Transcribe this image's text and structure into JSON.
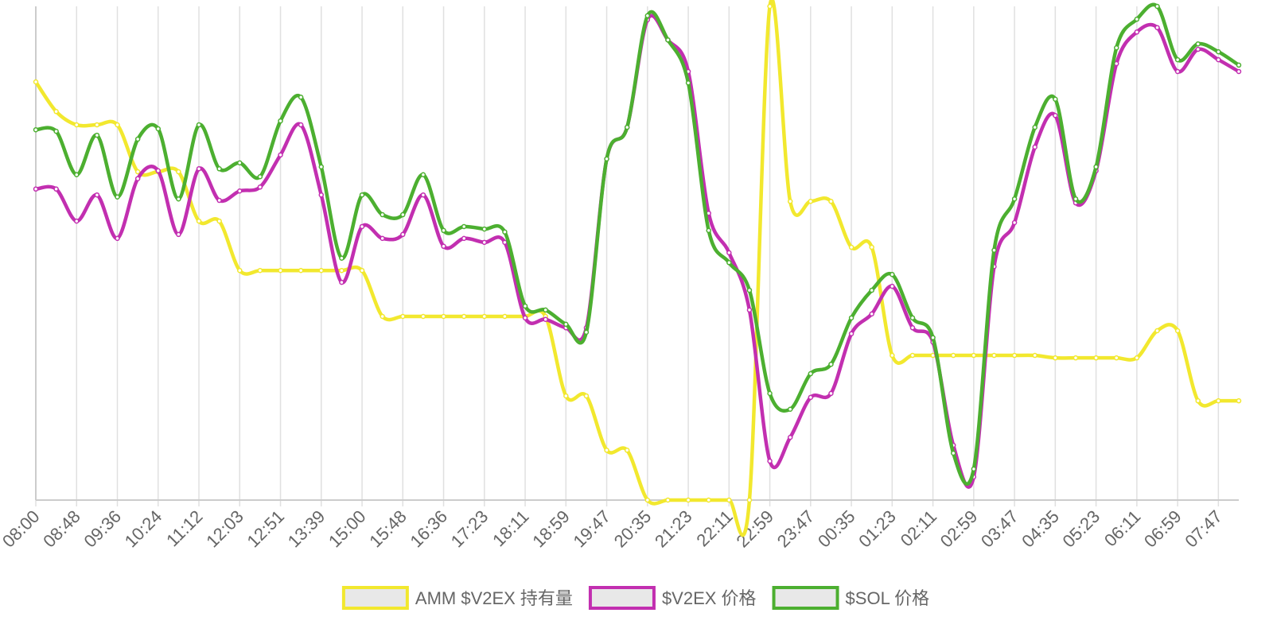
{
  "chart_data": {
    "type": "line",
    "categories": [
      "08:00",
      null,
      "08:48",
      null,
      "09:36",
      null,
      "10:24",
      null,
      "11:12",
      null,
      "12:03",
      null,
      "12:51",
      null,
      "13:39",
      null,
      "15:00",
      null,
      "15:48",
      null,
      "16:36",
      null,
      "17:23",
      null,
      "18:11",
      null,
      "18:59",
      null,
      "19:47",
      null,
      "20:35",
      null,
      "21:23",
      null,
      "22:11",
      null,
      "22:59",
      null,
      "23:47",
      null,
      "00:35",
      null,
      "01:23",
      null,
      "02:11",
      null,
      "02:59",
      null,
      "03:47",
      null,
      "04:35",
      null,
      "05:23",
      null,
      "06:11",
      null,
      "06:59",
      null,
      "07:47",
      null
    ],
    "series": [
      {
        "name": "AMM $V2EX 持有量",
        "color": "#f2e82e",
        "values": [
          84.7,
          78.7,
          76.0,
          76.0,
          76.0,
          66.5,
          66.5,
          66.5,
          56.5,
          56.5,
          46.5,
          46.5,
          46.5,
          46.5,
          46.5,
          46.5,
          46.5,
          37.2,
          37.2,
          37.2,
          37.2,
          37.2,
          37.2,
          37.2,
          37.2,
          37.2,
          21.1,
          21.1,
          10.1,
          10.1,
          0,
          0,
          0,
          0,
          0,
          0,
          100,
          60.5,
          60.5,
          60.5,
          51.2,
          51.2,
          29.3,
          29.3,
          29.3,
          29.3,
          29.3,
          29.3,
          29.3,
          29.3,
          28.8,
          28.8,
          28.8,
          28.8,
          28.8,
          34.3,
          34.3,
          20.1,
          20.1,
          20.1
        ]
      },
      {
        "name": "$V2EX 价格",
        "color": "#c22fb0",
        "values": [
          63.0,
          63.0,
          56.5,
          61.8,
          53.0,
          65.1,
          66.7,
          53.8,
          67.1,
          60.7,
          62.6,
          63.4,
          69.9,
          76.0,
          61.8,
          44.1,
          55.4,
          53.0,
          53.8,
          61.8,
          51.4,
          53.0,
          52.2,
          52.2,
          36.9,
          36.6,
          34.9,
          34.9,
          69.1,
          75.5,
          97.3,
          93.2,
          86.8,
          58.1,
          50.1,
          38.5,
          7.9,
          12.7,
          20.8,
          21.6,
          33.7,
          37.7,
          43.3,
          34.9,
          32.0,
          11.1,
          4.7,
          47.3,
          56.2,
          71.5,
          77.9,
          60.2,
          66.7,
          88.4,
          94.8,
          95.7,
          86.8,
          91.3,
          89.2,
          86.8
        ]
      },
      {
        "name": "$SOL 价格",
        "color": "#4caf30",
        "values": [
          75.0,
          74.7,
          65.9,
          73.9,
          61.4,
          73.1,
          75.2,
          61.0,
          76.0,
          67.1,
          68.3,
          65.5,
          76.8,
          81.6,
          67.5,
          49.0,
          61.8,
          57.8,
          57.8,
          65.9,
          54.6,
          55.4,
          54.9,
          54.3,
          39.3,
          38.5,
          35.6,
          34.0,
          69.1,
          75.5,
          98.1,
          93.2,
          84.5,
          54.6,
          48.1,
          42.5,
          21.6,
          18.4,
          25.6,
          27.5,
          36.9,
          42.5,
          45.7,
          36.9,
          32.9,
          9.5,
          6.3,
          50.6,
          61.0,
          75.5,
          81.2,
          61.0,
          67.5,
          91.6,
          97.4,
          100,
          89.2,
          92.4,
          90.8,
          88.1
        ]
      }
    ],
    "ylim": [
      0,
      100
    ],
    "grid": true,
    "legend": "bottom"
  }
}
